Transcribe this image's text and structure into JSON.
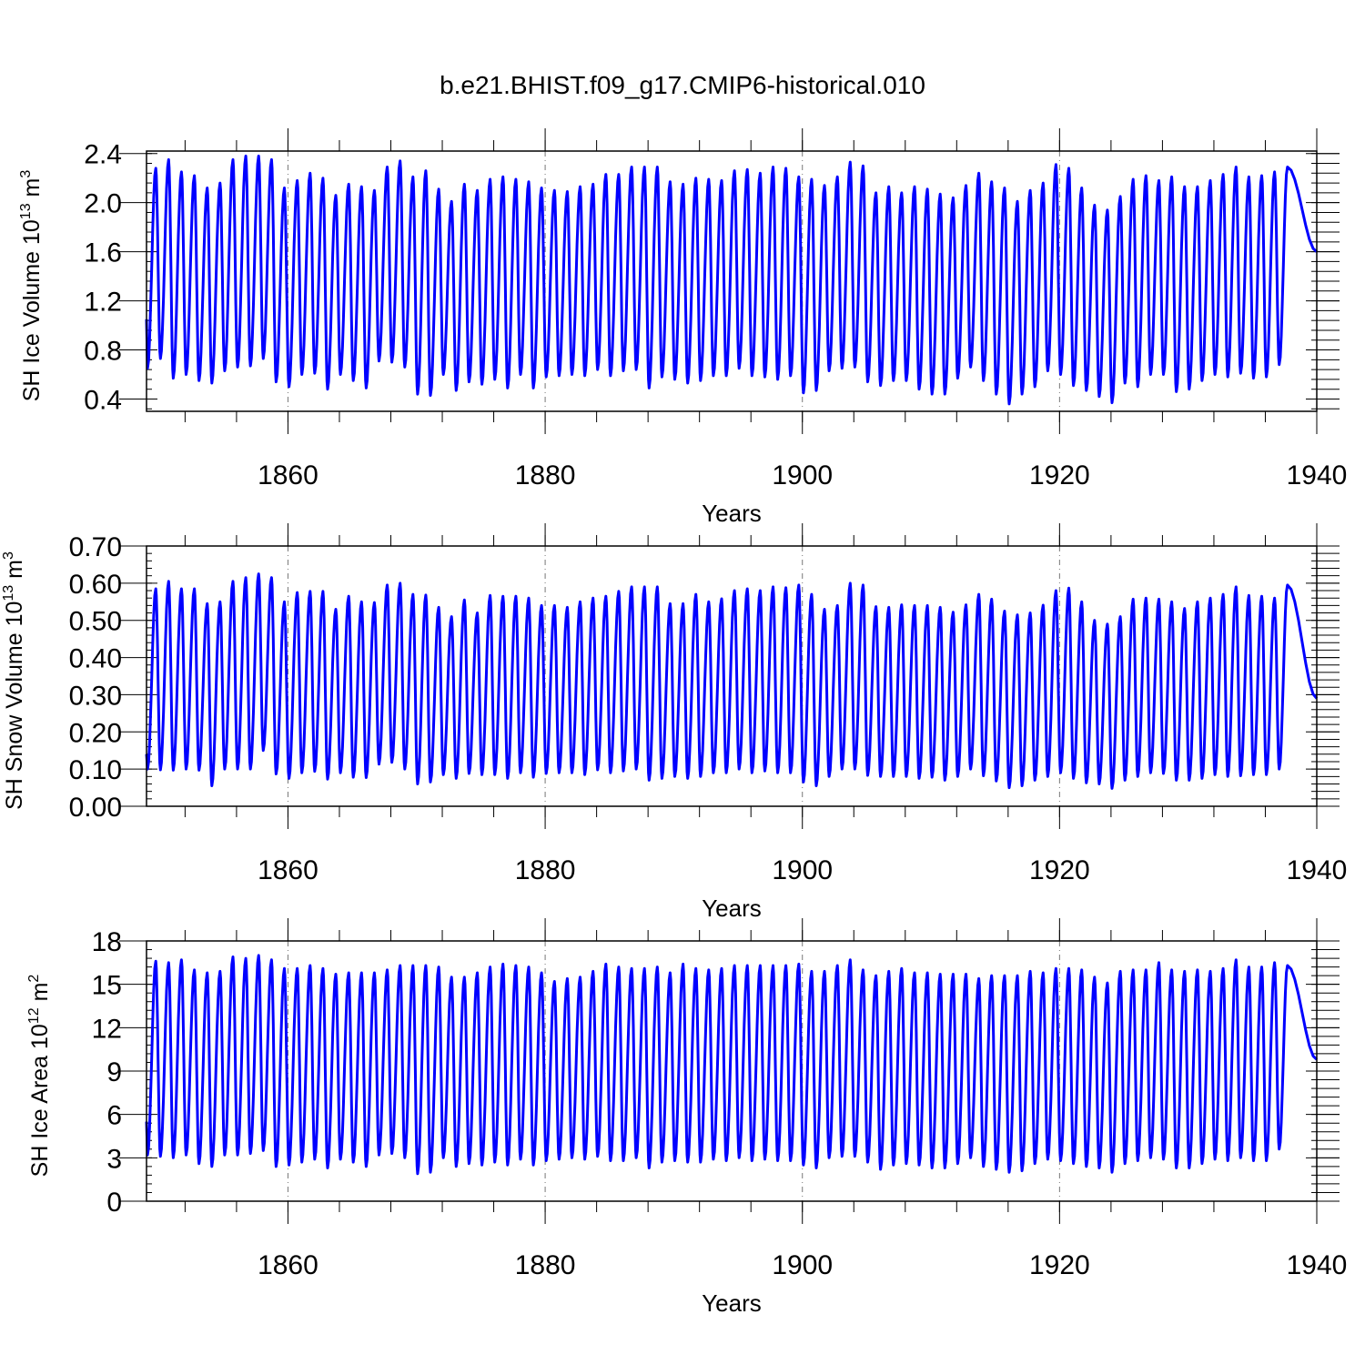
{
  "title": "b.e21.BHIST.f09_g17.CMIP6-historical.010",
  "colors": {
    "line": "#0000ff",
    "axis": "#000000",
    "grid": "#777777"
  },
  "chart_data": [
    {
      "type": "line",
      "id": "ice-volume",
      "xlabel": "Years",
      "ylabel": {
        "text": "SH Ice Volume 10",
        "exp": "13",
        "unit": " m",
        "unit_exp": "3"
      },
      "xlim": [
        1849,
        1940
      ],
      "xticks": [
        1860,
        1880,
        1900,
        1920,
        1940
      ],
      "ylim": [
        0.3,
        2.42
      ],
      "yticks": [
        0.4,
        0.8,
        1.2,
        1.6,
        2.0,
        2.4
      ],
      "ytick_labels": [
        "0.4",
        "0.8",
        "1.2",
        "1.6",
        "2.0",
        "2.4"
      ],
      "grid": "vertical dashed at labelled years",
      "series": [
        {
          "start_value": 1.05,
          "end_value": 1.6,
          "annual_max": [
            2.28,
            2.35,
            2.25,
            2.22,
            2.12,
            2.16,
            2.35,
            2.38,
            2.38,
            2.35,
            2.12,
            2.18,
            2.24,
            2.2,
            2.06,
            2.15,
            2.13,
            2.1,
            2.29,
            2.34,
            2.21,
            2.26,
            2.11,
            2.01,
            2.15,
            2.1,
            2.19,
            2.21,
            2.19,
            2.17,
            2.12,
            2.1,
            2.09,
            2.13,
            2.15,
            2.23,
            2.23,
            2.29,
            2.29,
            2.29,
            2.17,
            2.15,
            2.2,
            2.19,
            2.18,
            2.26,
            2.27,
            2.24,
            2.29,
            2.28,
            2.21,
            2.19,
            2.14,
            2.21,
            2.33,
            2.3,
            2.08,
            2.13,
            2.08,
            2.13,
            2.11,
            2.07,
            2.04,
            2.14,
            2.24,
            2.17,
            2.12,
            2.01,
            2.1,
            2.16,
            2.31,
            2.28,
            2.12,
            1.98,
            1.94,
            2.05,
            2.19,
            2.22,
            2.18,
            2.21,
            2.13,
            2.13,
            2.18,
            2.23,
            2.29,
            2.21,
            2.22,
            2.25,
            2.29
          ],
          "annual_min": [
            0.65,
            0.73,
            0.57,
            0.6,
            0.55,
            0.53,
            0.63,
            0.66,
            0.67,
            0.73,
            0.54,
            0.5,
            0.6,
            0.61,
            0.48,
            0.6,
            0.55,
            0.49,
            0.71,
            0.7,
            0.66,
            0.44,
            0.43,
            0.6,
            0.47,
            0.54,
            0.52,
            0.56,
            0.49,
            0.6,
            0.49,
            0.58,
            0.59,
            0.6,
            0.59,
            0.64,
            0.59,
            0.63,
            0.64,
            0.49,
            0.58,
            0.56,
            0.53,
            0.55,
            0.59,
            0.59,
            0.65,
            0.59,
            0.58,
            0.56,
            0.59,
            0.45,
            0.47,
            0.63,
            0.65,
            0.66,
            0.54,
            0.51,
            0.55,
            0.55,
            0.48,
            0.44,
            0.44,
            0.57,
            0.66,
            0.55,
            0.44,
            0.36,
            0.44,
            0.5,
            0.63,
            0.6,
            0.51,
            0.47,
            0.42,
            0.37,
            0.53,
            0.5,
            0.6,
            0.6,
            0.46,
            0.48,
            0.55,
            0.6,
            0.58,
            0.61,
            0.57,
            0.58,
            0.68
          ]
        }
      ]
    },
    {
      "type": "line",
      "id": "snow-volume",
      "xlabel": "Years",
      "ylabel": {
        "text": "SH Snow Volume 10",
        "exp": "13",
        "unit": " m",
        "unit_exp": "3"
      },
      "xlim": [
        1849,
        1940
      ],
      "xticks": [
        1860,
        1880,
        1900,
        1920,
        1940
      ],
      "ylim": [
        0.0,
        0.7
      ],
      "yticks": [
        0.0,
        0.1,
        0.2,
        0.3,
        0.4,
        0.5,
        0.6,
        0.7
      ],
      "ytick_labels": [
        "0.00",
        "0.10",
        "0.20",
        "0.30",
        "0.40",
        "0.50",
        "0.60",
        "0.70"
      ],
      "grid": "vertical dashed at labelled years",
      "series": [
        {
          "start_value": 0.14,
          "end_value": 0.29,
          "annual_max": [
            0.585,
            0.605,
            0.585,
            0.585,
            0.545,
            0.55,
            0.605,
            0.615,
            0.625,
            0.615,
            0.55,
            0.575,
            0.578,
            0.578,
            0.53,
            0.565,
            0.55,
            0.548,
            0.595,
            0.6,
            0.57,
            0.568,
            0.535,
            0.51,
            0.555,
            0.52,
            0.567,
            0.565,
            0.565,
            0.56,
            0.54,
            0.54,
            0.535,
            0.55,
            0.56,
            0.565,
            0.578,
            0.59,
            0.59,
            0.59,
            0.545,
            0.545,
            0.57,
            0.55,
            0.558,
            0.58,
            0.585,
            0.58,
            0.59,
            0.588,
            0.595,
            0.57,
            0.53,
            0.54,
            0.6,
            0.595,
            0.537,
            0.535,
            0.542,
            0.54,
            0.54,
            0.535,
            0.522,
            0.542,
            0.57,
            0.557,
            0.525,
            0.515,
            0.52,
            0.541,
            0.58,
            0.587,
            0.55,
            0.5,
            0.49,
            0.51,
            0.557,
            0.56,
            0.557,
            0.55,
            0.532,
            0.55,
            0.56,
            0.57,
            0.59,
            0.567,
            0.565,
            0.56,
            0.595
          ],
          "annual_min": [
            0.1,
            0.098,
            0.097,
            0.1,
            0.097,
            0.055,
            0.1,
            0.1,
            0.1,
            0.15,
            0.087,
            0.075,
            0.09,
            0.094,
            0.073,
            0.09,
            0.078,
            0.077,
            0.113,
            0.118,
            0.1,
            0.06,
            0.065,
            0.085,
            0.075,
            0.088,
            0.085,
            0.085,
            0.075,
            0.09,
            0.078,
            0.088,
            0.09,
            0.09,
            0.085,
            0.098,
            0.09,
            0.095,
            0.1,
            0.07,
            0.075,
            0.08,
            0.075,
            0.08,
            0.09,
            0.09,
            0.1,
            0.09,
            0.095,
            0.09,
            0.09,
            0.065,
            0.055,
            0.08,
            0.1,
            0.1,
            0.083,
            0.08,
            0.08,
            0.08,
            0.075,
            0.078,
            0.07,
            0.08,
            0.1,
            0.082,
            0.068,
            0.05,
            0.055,
            0.07,
            0.08,
            0.09,
            0.075,
            0.063,
            0.06,
            0.048,
            0.07,
            0.08,
            0.09,
            0.088,
            0.07,
            0.07,
            0.075,
            0.085,
            0.08,
            0.082,
            0.085,
            0.085,
            0.1
          ]
        }
      ]
    },
    {
      "type": "line",
      "id": "ice-area",
      "xlabel": "Years",
      "ylabel": {
        "text": "SH Ice Area 10",
        "exp": "12",
        "unit": " m",
        "unit_exp": "2"
      },
      "xlim": [
        1849,
        1940
      ],
      "xticks": [
        1860,
        1880,
        1900,
        1920,
        1940
      ],
      "ylim": [
        0,
        18
      ],
      "yticks": [
        0,
        3,
        6,
        9,
        12,
        15,
        18
      ],
      "ytick_labels": [
        "0",
        "3",
        "6",
        "9",
        "12",
        "15",
        "18"
      ],
      "grid": "vertical dashed at labelled years",
      "series": [
        {
          "start_value": 5.5,
          "end_value": 9.8,
          "annual_max": [
            16.6,
            16.5,
            16.7,
            16.0,
            15.8,
            15.9,
            16.9,
            16.8,
            17.0,
            16.7,
            16.1,
            16.1,
            16.3,
            16.1,
            15.7,
            15.8,
            15.8,
            15.8,
            16.0,
            16.3,
            16.3,
            16.3,
            16.2,
            15.5,
            15.5,
            15.8,
            16.2,
            16.4,
            16.3,
            16.2,
            15.8,
            15.2,
            15.4,
            15.5,
            15.9,
            16.4,
            16.2,
            16.1,
            16.1,
            16.2,
            15.8,
            16.4,
            16.1,
            16.0,
            16.1,
            16.3,
            16.3,
            16.3,
            16.3,
            16.3,
            16.4,
            15.9,
            15.9,
            16.3,
            16.7,
            16.0,
            15.6,
            15.9,
            16.1,
            15.8,
            15.8,
            15.7,
            15.7,
            15.7,
            15.4,
            15.6,
            15.6,
            15.6,
            15.9,
            15.8,
            16.1,
            16.1,
            16.0,
            15.5,
            15.1,
            15.9,
            16.0,
            16.0,
            16.5,
            16.0,
            15.9,
            16.0,
            15.9,
            16.1,
            16.7,
            16.2,
            16.2,
            16.5,
            16.3
          ],
          "annual_min": [
            3.2,
            3.1,
            3.0,
            3.2,
            2.6,
            2.4,
            3.2,
            3.2,
            3.3,
            3.5,
            2.4,
            2.5,
            2.7,
            2.9,
            2.3,
            2.9,
            2.7,
            2.4,
            3.2,
            3.3,
            3.0,
            1.9,
            2.0,
            3.0,
            2.4,
            2.6,
            2.5,
            2.7,
            2.5,
            2.9,
            2.5,
            2.8,
            2.9,
            3.0,
            2.9,
            3.1,
            2.8,
            2.8,
            3.0,
            2.3,
            2.7,
            2.8,
            2.7,
            2.7,
            2.9,
            2.8,
            3.0,
            2.8,
            2.9,
            2.8,
            2.8,
            2.5,
            2.3,
            3.0,
            3.1,
            3.1,
            2.7,
            2.2,
            2.5,
            2.6,
            2.5,
            2.3,
            2.3,
            2.6,
            3.0,
            2.4,
            2.2,
            2.0,
            2.1,
            2.6,
            2.9,
            2.8,
            2.6,
            2.4,
            2.3,
            2.0,
            2.6,
            2.8,
            3.0,
            2.9,
            2.3,
            2.3,
            2.6,
            2.9,
            2.8,
            3.0,
            2.8,
            2.8,
            3.6
          ]
        }
      ]
    }
  ]
}
